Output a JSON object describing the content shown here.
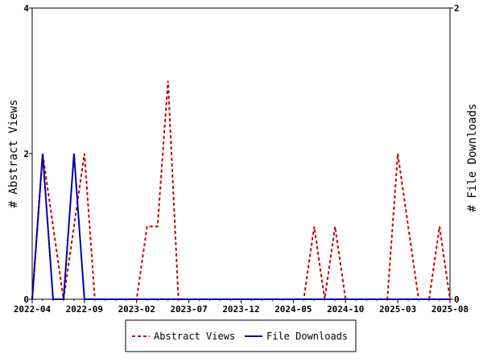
{
  "chart_data": {
    "type": "line",
    "x_tick_labels": [
      "2022-04",
      "2022-09",
      "2023-02",
      "2023-07",
      "2023-12",
      "2024-05",
      "2024-10",
      "2025-03",
      "2025-08"
    ],
    "y_left": {
      "label": "# Abstract Views",
      "ticks": [
        "0",
        "2",
        "4"
      ],
      "range": [
        0,
        4
      ]
    },
    "y_right": {
      "label": "# File Downloads",
      "ticks": [
        "0",
        "2"
      ],
      "range": [
        0,
        2
      ]
    },
    "x": [
      "2022-04",
      "2022-05",
      "2022-06",
      "2022-07",
      "2022-08",
      "2022-09",
      "2022-10",
      "2022-11",
      "2022-12",
      "2023-01",
      "2023-02",
      "2023-03",
      "2023-04",
      "2023-05",
      "2023-06",
      "2023-07",
      "2023-08",
      "2023-09",
      "2023-10",
      "2023-11",
      "2023-12",
      "2024-01",
      "2024-02",
      "2024-03",
      "2024-04",
      "2024-05",
      "2024-06",
      "2024-07",
      "2024-08",
      "2024-09",
      "2024-10",
      "2024-11",
      "2024-12",
      "2025-01",
      "2025-02",
      "2025-03",
      "2025-04",
      "2025-05",
      "2025-06",
      "2025-07",
      "2025-08"
    ],
    "series": [
      {
        "name": "Abstract Views",
        "axis": "left",
        "color": "#cc0000",
        "dash": "dashed",
        "values": [
          0,
          2,
          1,
          0,
          1,
          2,
          0,
          0,
          0,
          0,
          0,
          1,
          1,
          3,
          0,
          0,
          0,
          0,
          0,
          0,
          0,
          0,
          0,
          0,
          0,
          0,
          0,
          1,
          0,
          1,
          0,
          0,
          0,
          0,
          0,
          2,
          1,
          0,
          0,
          1,
          0
        ]
      },
      {
        "name": "File Downloads",
        "axis": "right",
        "color": "#0000aa",
        "dash": "solid",
        "values": [
          0,
          1,
          0,
          0,
          1,
          0,
          0,
          0,
          0,
          0,
          0,
          0,
          0,
          0,
          0,
          0,
          0,
          0,
          0,
          0,
          0,
          0,
          0,
          0,
          0,
          0,
          0,
          0,
          0,
          0,
          0,
          0,
          0,
          0,
          0,
          0,
          0,
          0,
          0,
          0,
          0
        ]
      }
    ],
    "legend": {
      "placement": "bottom-center",
      "entries": [
        "Abstract Views",
        "File Downloads"
      ]
    }
  }
}
